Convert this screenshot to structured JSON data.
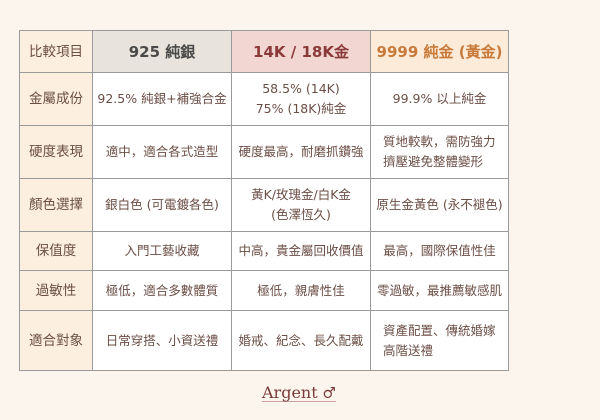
{
  "table": {
    "headers": [
      "比較項目",
      "925 純銀",
      "14K / 18K金",
      "9999 純金 (黃金)"
    ],
    "rows": [
      {
        "label": "金屬成份",
        "cells": [
          "92.5% 純銀+補強合金",
          "58.5% (14K)\n75% (18K)純金",
          "99.9% 以上純金"
        ]
      },
      {
        "label": "硬度表現",
        "cells": [
          "適中，適合各式造型",
          "硬度最高，耐磨抓鑽強",
          "質地較軟，需防強力\n擠壓避免整體變形"
        ]
      },
      {
        "label": "顏色選擇",
        "cells": [
          "銀白色 (可電鍍各色)",
          "黃K/玫瑰金/白K金\n(色澤恆久)",
          "原生金黃色 (永不褪色)"
        ]
      },
      {
        "label": "保值度",
        "cells": [
          "入門工藝收藏",
          "中高，貴金屬回收價值",
          "最高，國際保值性佳"
        ]
      },
      {
        "label": "過敏性",
        "cells": [
          "極低，適合多數體質",
          "極低，親膚性佳",
          "零過敏，最推薦敏感肌"
        ]
      },
      {
        "label": "適合對象",
        "cells": [
          "日常穿搭、小資送禮",
          "婚戒、紀念、長久配戴",
          "資產配置、傳統婚嫁\n高階送禮"
        ]
      }
    ]
  },
  "logo": {
    "text": "Argent"
  },
  "colors": {
    "background": "#fcf5ee",
    "silver_header": "#e8e3dc",
    "gold_k_header": "#f2d6d2",
    "gold_k_text": "#8b3a3a",
    "pure_gold_header": "#fdebd9",
    "pure_gold_text": "#c87a3a"
  }
}
